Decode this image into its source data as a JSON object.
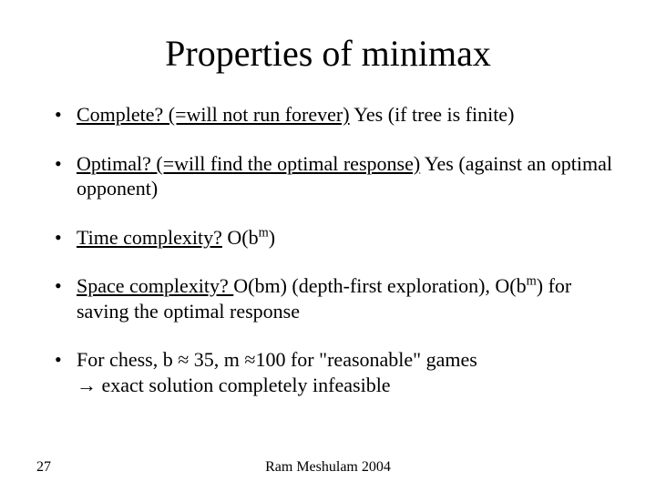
{
  "slide": {
    "title": "Properties of minimax",
    "bullets": [
      {
        "u": "Complete? (=will not run forever)",
        "rest": " Yes (if tree is finite)"
      },
      {
        "u": "Optimal? (=will find the optimal response)",
        "rest": " Yes (against an optimal opponent)"
      },
      {
        "u": "Time complexity?",
        "ob_prefix": " O(b",
        "sup1": "m",
        "ob_suffix": ")"
      },
      {
        "u": "Space complexity? ",
        "rest_a": " O(bm) (depth-first exploration), O(b",
        "sup2": "m",
        "rest_b": ") for saving the optimal response"
      },
      {
        "plain": "For chess, b ≈ 35, m ≈100 for \"reasonable\" games",
        "line2": "→ exact solution completely infeasible"
      }
    ],
    "footer": {
      "page": "27",
      "author": "Ram Meshulam 2004"
    }
  },
  "style": {
    "background_color": "#ffffff",
    "text_color": "#000000",
    "title_fontsize": 40,
    "body_fontsize": 22,
    "footer_fontsize": 16,
    "font_family": "Times New Roman"
  }
}
